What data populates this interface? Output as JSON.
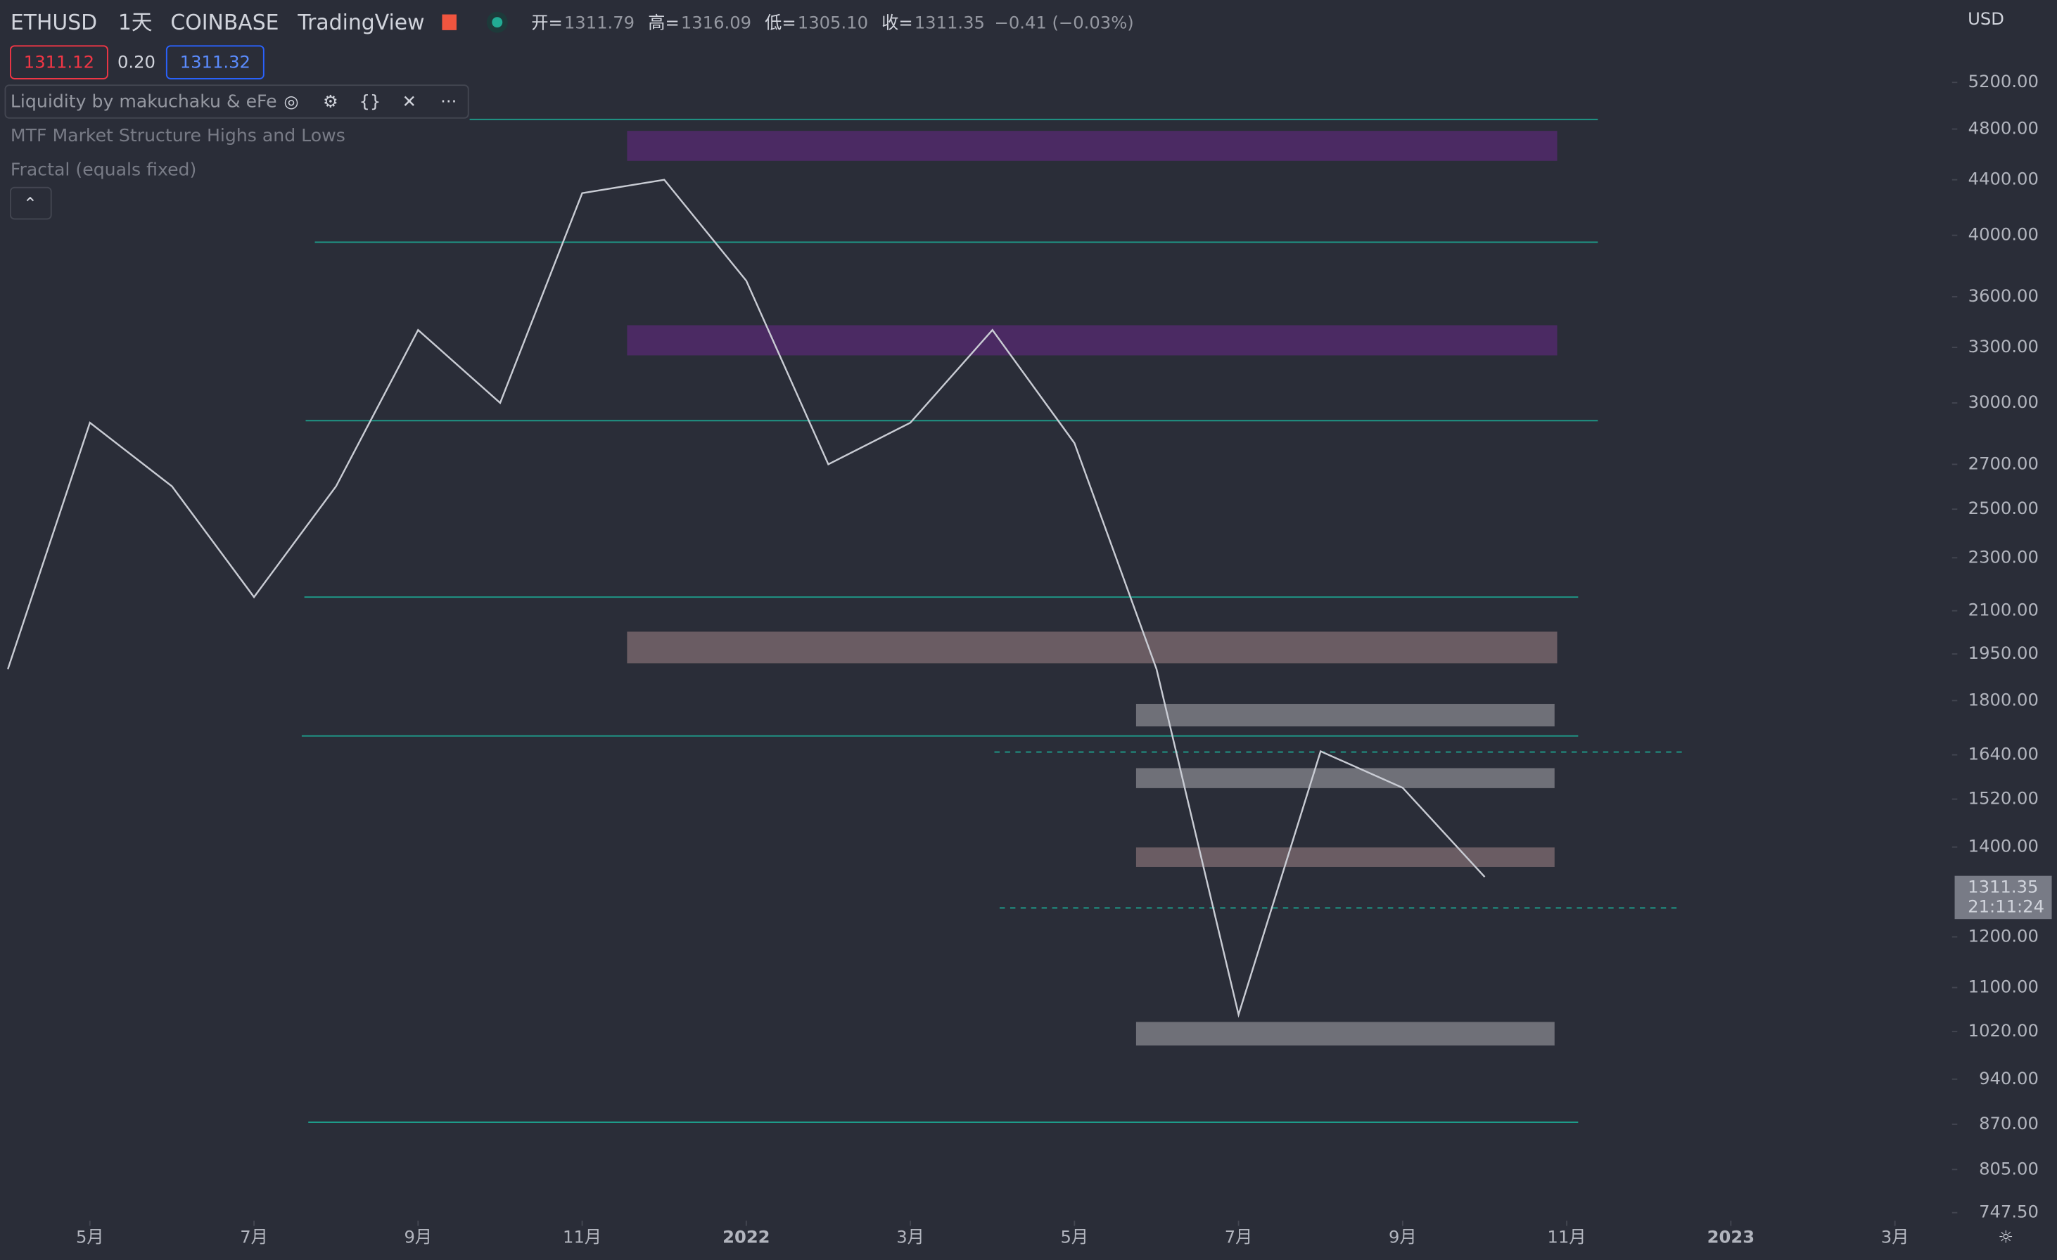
{
  "header": {
    "symbol": "ETHUSD",
    "interval": "1天",
    "exchange": "COINBASE",
    "source": "TradingView",
    "ohlc": [
      {
        "label": "开=",
        "value": "1311.79"
      },
      {
        "label": "高=",
        "value": "1316.09"
      },
      {
        "label": "低=",
        "value": "1305.10"
      },
      {
        "label": "收=",
        "value": "1311.35"
      }
    ],
    "change": "−0.41 (−0.03%)",
    "currency": "USD"
  },
  "order": {
    "bid": "1311.12",
    "spread": "0.20",
    "ask": "1311.32"
  },
  "indicators": [
    "Liquidity by makuchaku & eFe",
    "MTF Market Structure Highs and Lows",
    "Fractal (equals fixed)"
  ],
  "last_price": {
    "price": "1311.35",
    "countdown": "21:11:24"
  },
  "chart_data": {
    "type": "line",
    "log_scale": true,
    "xlim": [
      "2021-04",
      "2023-04"
    ],
    "xticks": [
      {
        "value": "2021-05",
        "label": "5月"
      },
      {
        "value": "2021-07",
        "label": "7月"
      },
      {
        "value": "2021-09",
        "label": "9月"
      },
      {
        "value": "2021-11",
        "label": "11月"
      },
      {
        "value": "2022-01",
        "label": "2022"
      },
      {
        "value": "2022-03",
        "label": "3月"
      },
      {
        "value": "2022-05",
        "label": "5月"
      },
      {
        "value": "2022-07",
        "label": "7月"
      },
      {
        "value": "2022-09",
        "label": "9月"
      },
      {
        "value": "2022-11",
        "label": "11月"
      },
      {
        "value": "2023-01",
        "label": "2023"
      },
      {
        "value": "2023-03",
        "label": "3月"
      }
    ],
    "ylim": [
      739,
      5990
    ],
    "yticks": [
      {
        "value": 5200,
        "label": "5200.00"
      },
      {
        "value": 4800,
        "label": "4800.00"
      },
      {
        "value": 4400,
        "label": "4400.00"
      },
      {
        "value": 4000,
        "label": "4000.00"
      },
      {
        "value": 3600,
        "label": "3600.00"
      },
      {
        "value": 3300,
        "label": "3300.00"
      },
      {
        "value": 3000,
        "label": "3000.00"
      },
      {
        "value": 2700,
        "label": "2700.00"
      },
      {
        "value": 2500,
        "label": "2500.00"
      },
      {
        "value": 2300,
        "label": "2300.00"
      },
      {
        "value": 2100,
        "label": "2100.00"
      },
      {
        "value": 1950,
        "label": "1950.00"
      },
      {
        "value": 1800,
        "label": "1800.00"
      },
      {
        "value": 1640,
        "label": "1640.00"
      },
      {
        "value": 1520,
        "label": "1520.00"
      },
      {
        "value": 1400,
        "label": "1400.00"
      },
      {
        "value": 1200,
        "label": "1200.00"
      },
      {
        "value": 1100,
        "label": "1100.00"
      },
      {
        "value": 1020,
        "label": "1020.00"
      },
      {
        "value": 940,
        "label": "940.00"
      },
      {
        "value": 870,
        "label": "870.00"
      },
      {
        "value": 805,
        "label": "805.00"
      },
      {
        "value": 747.5,
        "label": "747.50"
      }
    ],
    "x": [
      "2021-04",
      "2021-05",
      "2021-06",
      "2021-07",
      "2021-08",
      "2021-09",
      "2021-10",
      "2021-11",
      "2021-12",
      "2022-01",
      "2022-02",
      "2022-03",
      "2022-04",
      "2022-05",
      "2022-06",
      "2022-07",
      "2022-08",
      "2022-09",
      "2022-10"
    ],
    "series": [
      {
        "color": "#c9ccd4",
        "values": [
          1900,
          2900,
          2600,
          2150,
          2600,
          3400,
          3000,
          4300,
          4400,
          3700,
          2700,
          2900,
          3400,
          2800,
          1900,
          1050,
          1650,
          1550,
          1330
        ]
      }
    ],
    "zones": [
      {
        "top": 4785,
        "bottom": 4545,
        "color": "#4b2a63"
      },
      {
        "top": 3428,
        "bottom": 3255,
        "color": "#4b2a63"
      },
      {
        "top": 2026,
        "bottom": 1919,
        "color": "#6a5c63"
      },
      {
        "top": 1790,
        "bottom": 1722,
        "color": "#6f7078"
      },
      {
        "top": 1603,
        "bottom": 1549,
        "color": "#6f7078"
      },
      {
        "top": 1399,
        "bottom": 1353,
        "color": "#6a5c63"
      },
      {
        "top": 1037,
        "bottom": 996,
        "color": "#6f7078"
      }
    ],
    "levels": [
      4880,
      3953,
      2910,
      2150,
      1694,
      873
    ],
    "level_color": "#1e9c8a",
    "dashed_levels": [
      1648,
      1261
    ]
  }
}
